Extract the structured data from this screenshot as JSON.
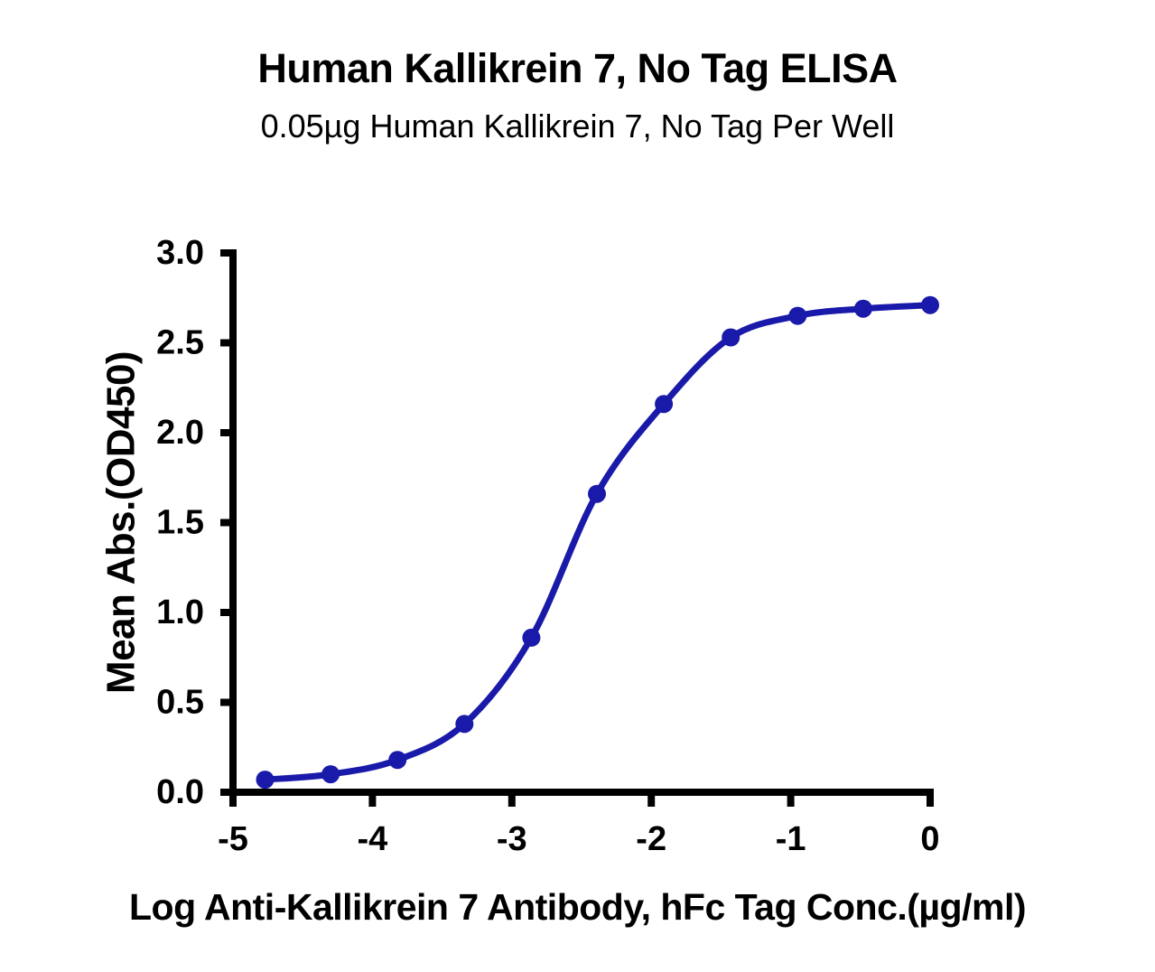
{
  "chart_data": {
    "type": "line",
    "title": "Human Kallikrein 7, No Tag ELISA",
    "subtitle": "0.05µg Human Kallikrein 7, No Tag Per Well",
    "xlabel": "Log Anti-Kallikrein 7 Antibody, hFc Tag Conc.(µg/ml)",
    "ylabel": "Mean Abs.(OD450)",
    "xlim": [
      -5,
      0
    ],
    "ylim": [
      0,
      3
    ],
    "x_ticks": [
      -5,
      -4,
      -3,
      -2,
      -1,
      0
    ],
    "y_ticks": [
      0,
      0.5,
      1,
      1.5,
      2,
      2.5,
      3
    ],
    "grid": false,
    "legend": "none",
    "colors": {
      "curve": "#1919AA",
      "axis": "#000000",
      "text": "#000000",
      "background": "#FFFFFF"
    },
    "series": [
      {
        "name": "Anti-Kallikrein 7 Antibody, hFc Tag",
        "marker": "circle",
        "color": "#1919AA",
        "points": [
          {
            "x": -4.77,
            "y": 0.07
          },
          {
            "x": -4.3,
            "y": 0.1
          },
          {
            "x": -3.82,
            "y": 0.18
          },
          {
            "x": -3.34,
            "y": 0.38
          },
          {
            "x": -2.86,
            "y": 0.86
          },
          {
            "x": -2.39,
            "y": 1.66
          },
          {
            "x": -1.91,
            "y": 2.16
          },
          {
            "x": -1.43,
            "y": 2.53
          },
          {
            "x": -0.95,
            "y": 2.65
          },
          {
            "x": -0.48,
            "y": 2.69
          },
          {
            "x": 0,
            "y": 2.71
          }
        ]
      }
    ]
  }
}
